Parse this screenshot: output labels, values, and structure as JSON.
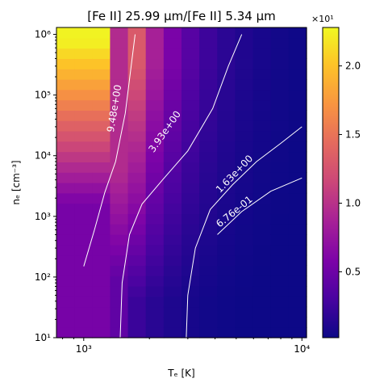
{
  "chart_data": {
    "type": "heatmap",
    "title": "[Fe II] 25.99 μm/[Fe II] 5.34 μm",
    "xlabel": "Tₑ [K]",
    "ylabel": "nₑ [cm⁻³]",
    "x_scale": "log",
    "y_scale": "log",
    "xlim": [
      750,
      10500
    ],
    "ylim": [
      10,
      1300000
    ],
    "x_ticks": [
      {
        "value": 1000,
        "label": "10³"
      },
      {
        "value": 10000,
        "label": "10⁴"
      }
    ],
    "y_ticks": [
      {
        "value": 10,
        "label": "10¹"
      },
      {
        "value": 100,
        "label": "10²"
      },
      {
        "value": 1000,
        "label": "10³"
      },
      {
        "value": 10000,
        "label": "10⁴"
      },
      {
        "value": 100000,
        "label": "10⁵"
      },
      {
        "value": 1000000,
        "label": "10⁶"
      }
    ],
    "grid": false,
    "colormap": "plasma",
    "colorbar": {
      "min": 0.2,
      "max": 22.8,
      "offset_label": "×10¹",
      "ticks": [
        {
          "value": 5,
          "label": "0.5"
        },
        {
          "value": 10,
          "label": "1.0"
        },
        {
          "value": 15,
          "label": "1.5"
        },
        {
          "value": 20,
          "label": "2.0"
        }
      ]
    },
    "contours": [
      {
        "level": 9.48,
        "label": "9.48e+00",
        "points": [
          [
            1000,
            150
          ],
          [
            1120,
            600
          ],
          [
            1250,
            2500
          ],
          [
            1400,
            8000
          ],
          [
            1550,
            50000
          ],
          [
            1650,
            300000
          ],
          [
            1720,
            1000000
          ]
        ],
        "label_at": [
          1380,
          60000
        ]
      },
      {
        "level": 3.93,
        "label": "3.93e+00",
        "points": [
          [
            1470,
            10
          ],
          [
            1500,
            80
          ],
          [
            1620,
            500
          ],
          [
            1850,
            1600
          ],
          [
            2300,
            4000
          ],
          [
            3000,
            12000
          ],
          [
            3900,
            60000
          ],
          [
            4600,
            300000
          ],
          [
            5300,
            1000000
          ]
        ],
        "label_at": [
          2350,
          25000
        ]
      },
      {
        "level": 1.63,
        "label": "1.63e+00",
        "points": [
          [
            2950,
            10
          ],
          [
            3000,
            50
          ],
          [
            3250,
            300
          ],
          [
            3800,
            1300
          ],
          [
            4800,
            3300
          ],
          [
            6200,
            8000
          ],
          [
            8000,
            16000
          ],
          [
            10000,
            30000
          ]
        ],
        "label_at": [
          4900,
          5000
        ]
      },
      {
        "level": 0.676,
        "label": "6.76e-01",
        "points": [
          [
            4100,
            500
          ],
          [
            5300,
            1200
          ],
          [
            7200,
            2600
          ],
          [
            10000,
            4300
          ]
        ],
        "label_at": [
          4900,
          1200
        ]
      }
    ],
    "heatmap_note": "values vs log10 Te and log10 ne"
  }
}
